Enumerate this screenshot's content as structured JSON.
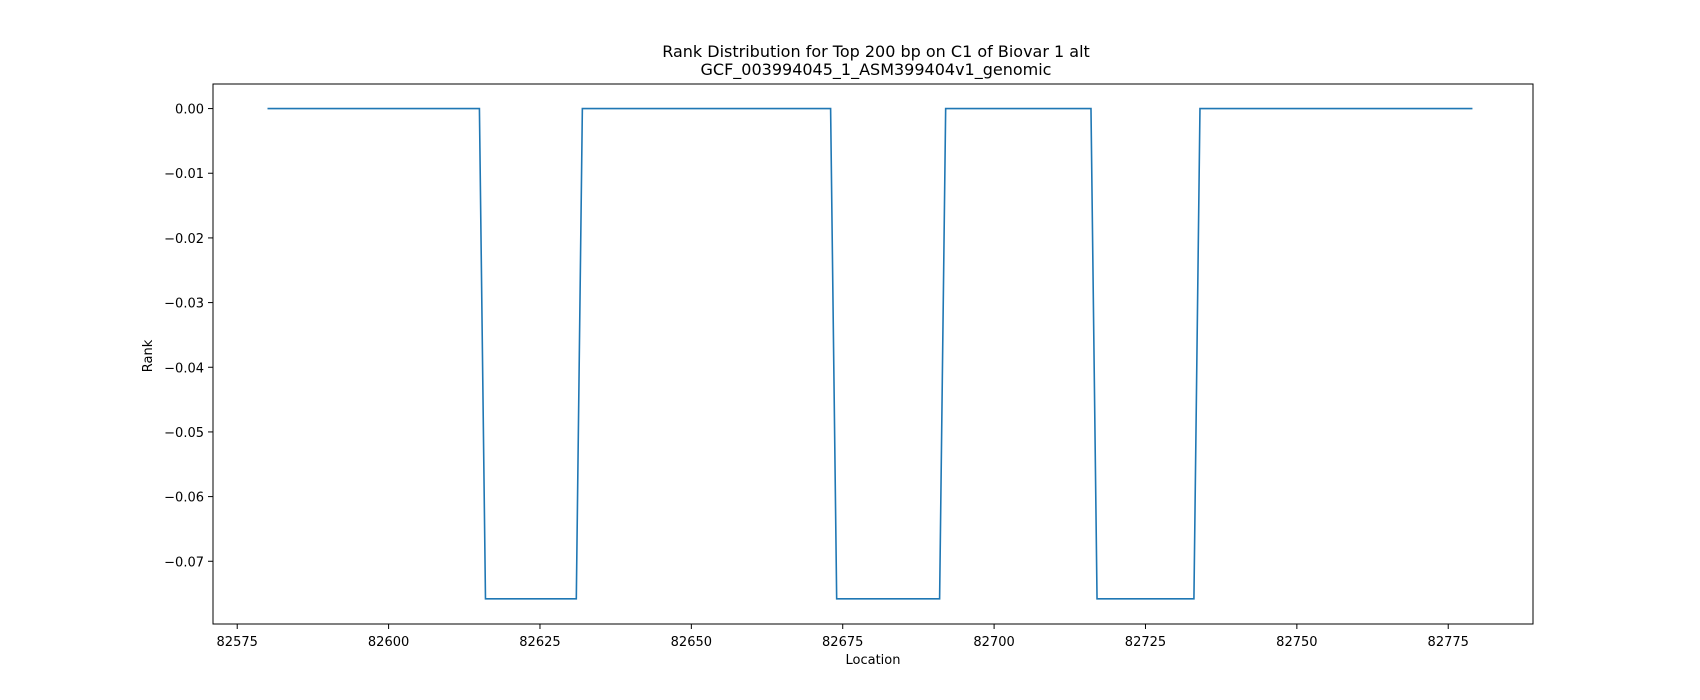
{
  "chart_data": {
    "type": "line",
    "title": "Rank Distribution for Top 200 bp on C1 of Biovar 1 alt",
    "subtitle": "GCF_003994045_1_ASM399404v1_genomic",
    "xlabel": "Location",
    "ylabel": "Rank",
    "xlim": [
      82571,
      82789
    ],
    "ylim": [
      -0.0797,
      0.0038
    ],
    "xticks": [
      82575,
      82600,
      82625,
      82650,
      82675,
      82700,
      82725,
      82750,
      82775
    ],
    "yticks": [
      0.0,
      -0.01,
      -0.02,
      -0.03,
      -0.04,
      -0.05,
      -0.06,
      -0.07
    ],
    "xtick_labels": [
      "82575",
      "82600",
      "82625",
      "82650",
      "82675",
      "82700",
      "82725",
      "82750",
      "82775"
    ],
    "ytick_labels": [
      "0.00",
      "−0.01",
      "−0.02",
      "−0.03",
      "−0.04",
      "−0.05",
      "−0.06",
      "−0.07"
    ],
    "grid": false,
    "series": [
      {
        "color": "#1f77b4",
        "x": [
          82580,
          82615,
          82616,
          82631,
          82632,
          82673,
          82674,
          82691,
          82692,
          82716,
          82717,
          82733,
          82734,
          82779
        ],
        "y": [
          0,
          0,
          -0.0758,
          -0.0758,
          0,
          0,
          -0.0758,
          -0.0758,
          0,
          0,
          -0.0758,
          -0.0758,
          0,
          0
        ]
      }
    ]
  }
}
